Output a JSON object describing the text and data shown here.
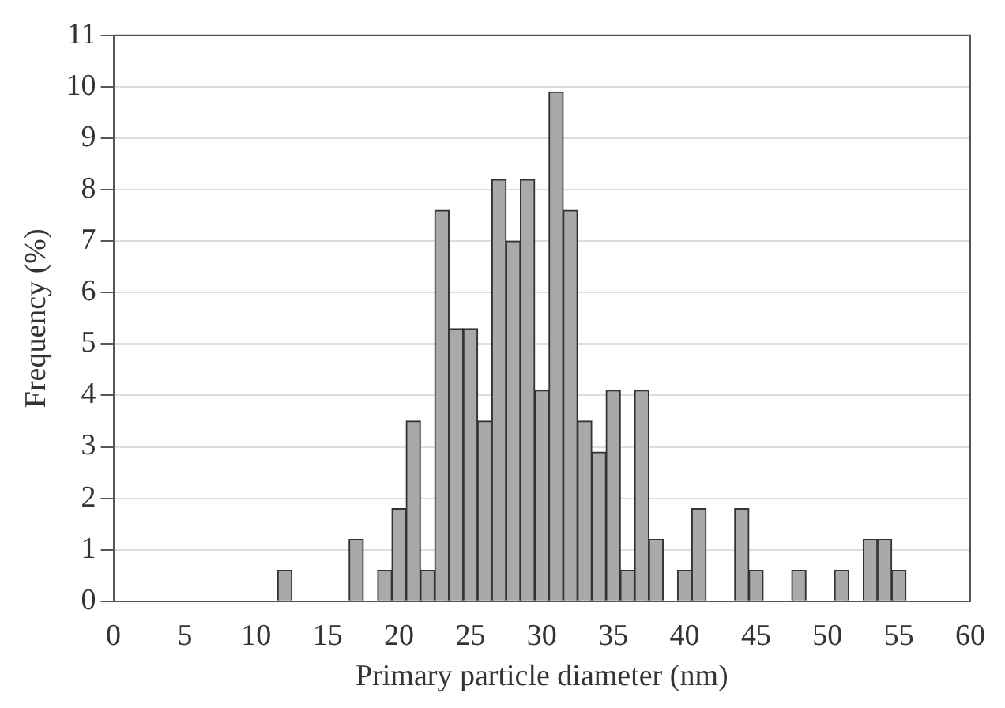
{
  "chart_data": {
    "type": "histogram",
    "xlabel": "Primary particle diameter (nm)",
    "ylabel": "Frequency (%)",
    "bins": [
      11.5,
      12.5,
      13.5,
      14.5,
      15.5,
      16.5,
      17.5,
      18.5,
      19.5,
      20.5,
      21.5,
      22.5,
      23.5,
      24.5,
      25.5,
      26.5,
      27.5,
      28.5,
      29.5,
      30.5,
      31.5,
      32.5,
      33.5,
      34.5,
      35.5,
      36.5,
      37.5,
      38.5,
      39.5,
      40.5,
      41.5,
      42.5,
      43.5,
      44.5,
      45.5,
      46.5,
      47.5,
      48.5,
      49.5,
      50.5,
      51.5,
      52.5,
      53.5,
      54.5,
      55.5
    ],
    "values": [
      0.6,
      0,
      0,
      0,
      0,
      1.2,
      0,
      0.6,
      1.8,
      3.5,
      0.6,
      7.6,
      5.3,
      5.3,
      3.5,
      8.2,
      7.0,
      8.2,
      4.1,
      9.9,
      7.6,
      3.5,
      2.9,
      4.1,
      0.6,
      4.1,
      1.2,
      0,
      0.6,
      1.8,
      0,
      0,
      1.8,
      0.6,
      0,
      0,
      0.6,
      0,
      0,
      0.6,
      0,
      1.2,
      1.2,
      0.6
    ],
    "color": "#a9a9a9",
    "xlim": [
      0,
      60
    ],
    "xticks": [
      0,
      5,
      10,
      15,
      20,
      25,
      30,
      35,
      40,
      45,
      50,
      55,
      60
    ],
    "ylim": [
      0,
      11
    ],
    "yticks": [
      0,
      1,
      2,
      3,
      4,
      5,
      6,
      7,
      8,
      9,
      10,
      11
    ],
    "grid": "y",
    "legend": false
  }
}
